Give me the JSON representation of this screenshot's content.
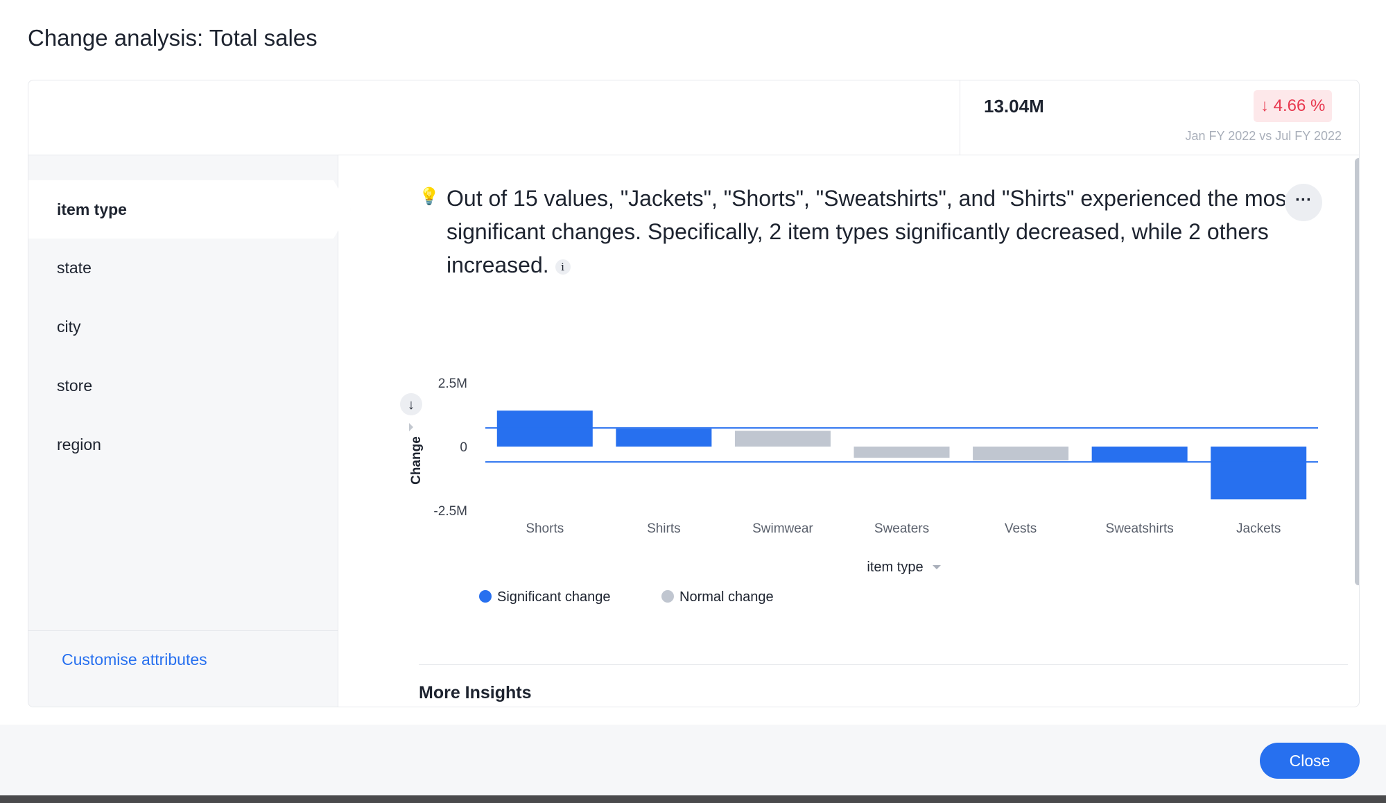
{
  "title": "Change analysis: Total sales",
  "summary": {
    "value": "13.04M",
    "change": "↓ 4.66 %",
    "comparison": "Jan FY 2022 vs Jul FY 2022",
    "change_color": "#e8384f"
  },
  "attributes": {
    "items": [
      "item type",
      "state",
      "city",
      "store",
      "region"
    ],
    "selected": "item type",
    "customise_label": "Customise attributes"
  },
  "insight": {
    "text": "Out of 15 values, \"Jackets\", \"Shorts\", \"Sweatshirts\", and \"Shirts\" experienced the most significant changes. Specifically, 2 item types significantly decreased, while 2 others increased.",
    "info_icon": "i",
    "bulb_icon": "lightbulb-sparkle-icon",
    "more_icon": "···"
  },
  "chart_data": {
    "type": "bar",
    "categories": [
      "Shorts",
      "Shirts",
      "Swimwear",
      "Sweaters",
      "Vests",
      "Sweatshirts",
      "Jackets"
    ],
    "values": [
      1.41,
      0.7,
      0.62,
      -0.44,
      -0.54,
      -0.6,
      -2.07
    ],
    "unit": "M",
    "significant": [
      true,
      true,
      false,
      false,
      false,
      true,
      true
    ],
    "thresholds": [
      0.73,
      -0.6
    ],
    "ylabel": "Change",
    "xlabel": "item type",
    "yticks": [
      "2.5M",
      "0",
      "-2.5M"
    ],
    "ylim": [
      -2.5,
      2.5
    ],
    "legend": [
      {
        "label": "Significant change",
        "color": "#2770ef"
      },
      {
        "label": "Normal change",
        "color": "#c0c6d0"
      }
    ],
    "legend_position": "bottom-left",
    "grid": false
  },
  "more_insights": "More Insights",
  "footer": {
    "close_label": "Close"
  }
}
